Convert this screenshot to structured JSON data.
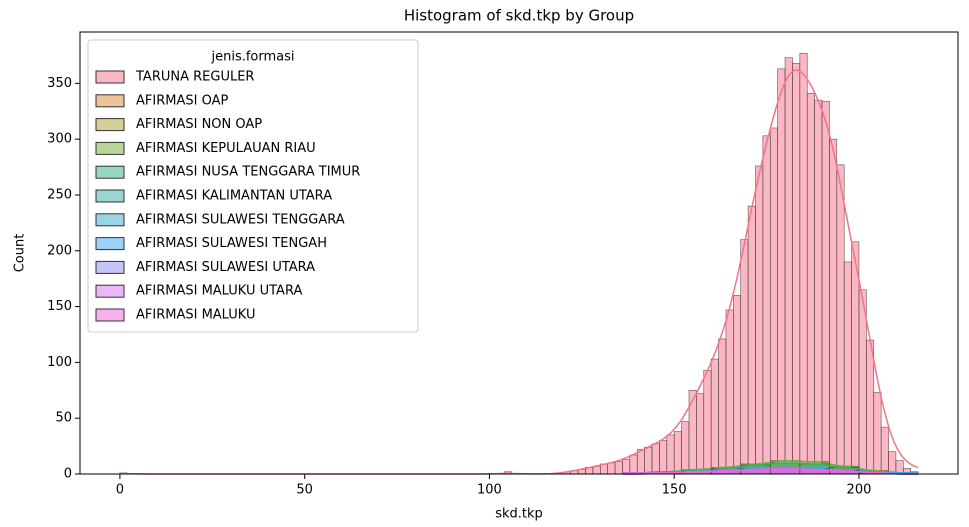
{
  "chart_data": {
    "type": "histogram",
    "title": "Histogram of skd.tkp by Group",
    "x_label": "skd.tkp",
    "y_label": "Count",
    "legend_title": "jenis.formasi",
    "legend": "upper left",
    "xlim": [
      -10.8,
      226.8
    ],
    "xticks": [
      0,
      50,
      100,
      150,
      200
    ],
    "ylim": [
      0,
      396
    ],
    "yticks": [
      0,
      50,
      100,
      150,
      200,
      250,
      300,
      350
    ],
    "kde": true,
    "series": [
      {
        "name": "TARUNA REGULER",
        "color": "#f77189",
        "bins": [
          0,
          2,
          4,
          6,
          8,
          10,
          12,
          14,
          16,
          18,
          20,
          22,
          24,
          26,
          28,
          30,
          32,
          34,
          36,
          38,
          40,
          42,
          44,
          46,
          48,
          50,
          52,
          54,
          56,
          58,
          60,
          62,
          64,
          66,
          68,
          70,
          72,
          74,
          76,
          78,
          80,
          82,
          84,
          86,
          88,
          90,
          92,
          94,
          96,
          98,
          100,
          102,
          104,
          106,
          108,
          110,
          112,
          114,
          116,
          118,
          120,
          122,
          124,
          126,
          128,
          130,
          132,
          134,
          136,
          138,
          140,
          142,
          144,
          146,
          148,
          150,
          152,
          154,
          156,
          158,
          160,
          162,
          164,
          166,
          168,
          170,
          172,
          174,
          176,
          178,
          180,
          182,
          184,
          186,
          188,
          190,
          192,
          194,
          196,
          198,
          200,
          202,
          204,
          206,
          208,
          210,
          212,
          214,
          216
        ],
        "values": [
          1,
          0,
          0,
          0,
          0,
          0,
          0,
          0,
          0,
          0,
          0,
          0,
          0,
          0,
          0,
          0,
          0,
          0,
          0,
          0,
          0,
          0,
          0,
          0,
          0,
          0,
          0,
          0,
          0,
          0,
          0,
          0,
          0,
          0,
          0,
          0,
          0,
          0,
          0,
          0,
          0,
          0,
          0,
          0,
          0,
          0,
          0,
          0,
          0,
          0,
          0,
          0,
          2,
          0,
          0,
          0,
          0,
          0,
          0,
          0,
          2,
          3,
          4,
          6,
          7,
          9,
          10,
          11,
          13,
          17,
          22,
          24,
          27,
          30,
          35,
          38,
          47,
          75,
          72,
          93,
          103,
          121,
          147,
          160,
          210,
          240,
          276,
          303,
          310,
          363,
          373,
          368,
          377,
          341,
          335,
          334,
          300,
          277,
          190,
          208,
          165,
          120,
          73,
          42,
          20,
          12,
          5,
          2
        ]
      },
      {
        "name": "AFIRMASI OAP",
        "color": "#dc8932",
        "bins": [
          136,
          144,
          152,
          160,
          168,
          176,
          184,
          192,
          200,
          208,
          216
        ],
        "values": [
          1,
          1,
          2,
          3,
          4,
          5,
          4,
          3,
          2,
          1
        ]
      },
      {
        "name": "AFIRMASI NON OAP",
        "color": "#ae9d31",
        "bins": [
          136,
          144,
          152,
          160,
          168,
          176,
          184,
          192,
          200,
          208,
          216
        ],
        "values": [
          1,
          2,
          3,
          5,
          7,
          9,
          8,
          5,
          3,
          1
        ]
      },
      {
        "name": "AFIRMASI KEPULAUAN RIAU",
        "color": "#77ab31",
        "bins": [
          136,
          144,
          152,
          160,
          168,
          176,
          184,
          192,
          200,
          208,
          216
        ],
        "values": [
          1,
          2,
          4,
          6,
          9,
          12,
          11,
          7,
          3,
          1
        ]
      },
      {
        "name": "AFIRMASI NUSA TENGGARA TIMUR",
        "color": "#33b07a",
        "bins": [
          136,
          144,
          152,
          160,
          168,
          176,
          184,
          192,
          200,
          208,
          216
        ],
        "values": [
          1,
          2,
          3,
          5,
          8,
          10,
          9,
          6,
          2,
          1
        ]
      },
      {
        "name": "AFIRMASI KALIMANTAN UTARA",
        "color": "#36ada4",
        "bins": [
          136,
          144,
          152,
          160,
          168,
          176,
          184,
          192,
          200,
          208,
          216
        ],
        "values": [
          0,
          1,
          2,
          3,
          4,
          5,
          4,
          3,
          1,
          0
        ]
      },
      {
        "name": "AFIRMASI SULAWESI TENGGARA",
        "color": "#38a9c5",
        "bins": [
          136,
          144,
          152,
          160,
          168,
          176,
          184,
          192,
          200,
          208,
          216
        ],
        "values": [
          1,
          1,
          2,
          4,
          5,
          6,
          5,
          3,
          1,
          0
        ]
      },
      {
        "name": "AFIRMASI SULAWESI TENGAH",
        "color": "#3ba3ec",
        "bins": [
          136,
          144,
          152,
          160,
          168,
          176,
          184,
          192,
          200,
          208,
          216
        ],
        "values": [
          1,
          1,
          2,
          3,
          5,
          6,
          5,
          3,
          2,
          1
        ]
      },
      {
        "name": "AFIRMASI SULAWESI UTARA",
        "color": "#8e8cf4",
        "bins": [
          136,
          144,
          152,
          160,
          168,
          176,
          184,
          192,
          200,
          208,
          216
        ],
        "values": [
          0,
          1,
          2,
          3,
          4,
          5,
          4,
          2,
          1,
          0
        ]
      },
      {
        "name": "AFIRMASI MALUKU UTARA",
        "color": "#d670f0",
        "bins": [
          136,
          144,
          152,
          160,
          168,
          176,
          184,
          192,
          200,
          208,
          216
        ],
        "values": [
          0,
          1,
          1,
          2,
          3,
          4,
          3,
          2,
          1,
          0
        ]
      },
      {
        "name": "AFIRMASI MALUKU",
        "color": "#f461dd",
        "bins": [
          136,
          144,
          152,
          160,
          168,
          176,
          184,
          192,
          200,
          208,
          216
        ],
        "values": [
          1,
          1,
          2,
          3,
          4,
          5,
          4,
          3,
          1,
          0
        ]
      }
    ]
  }
}
